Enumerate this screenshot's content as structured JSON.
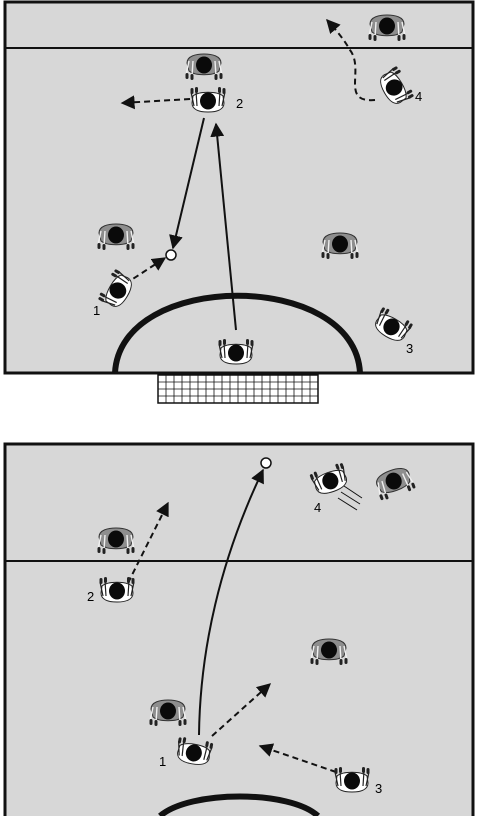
{
  "colors": {
    "court": "#d7d7d7",
    "line": "#111111",
    "offense_shirt": "#ffffff",
    "defense_shirt": "#8e8e8e",
    "head": "#0a0a0a"
  },
  "diagrams": [
    {
      "id": "top",
      "labels": [
        {
          "id": "p1",
          "text": "1"
        },
        {
          "id": "p2",
          "text": "2"
        },
        {
          "id": "p3",
          "text": "3"
        },
        {
          "id": "p4",
          "text": "4"
        }
      ]
    },
    {
      "id": "bottom",
      "labels": [
        {
          "id": "p1",
          "text": "1"
        },
        {
          "id": "p2",
          "text": "2"
        },
        {
          "id": "p3",
          "text": "3"
        },
        {
          "id": "p4",
          "text": "4"
        }
      ]
    }
  ]
}
